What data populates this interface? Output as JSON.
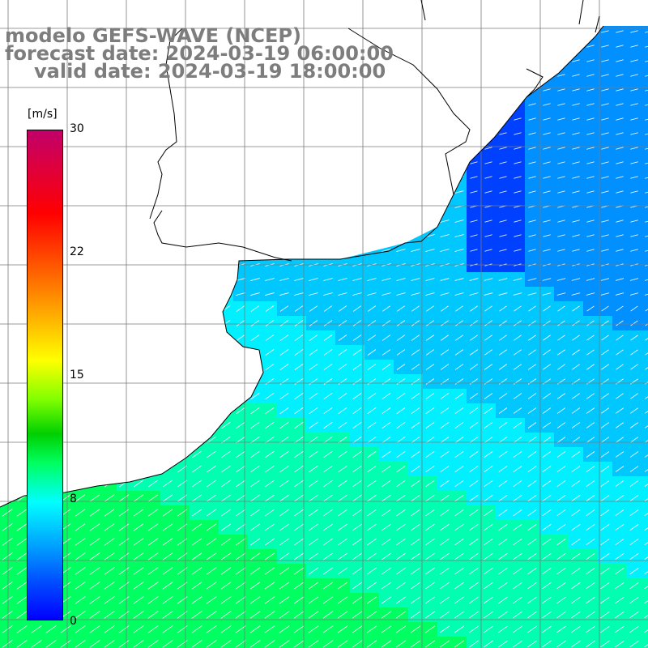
{
  "figure": {
    "title_lines": [
      "modelo GEFS-WAVE (NCEP)",
      "forecast date: 2024-03-19 06:00:00",
      "valid date: 2024-03-19 18:00:00"
    ],
    "variable": "wind speed and direction",
    "background_color": "#ffffff",
    "grid_color": "#7a7a7a",
    "coastline_color": "#000000",
    "vector_color": "#ffffff"
  },
  "colorbar": {
    "unit_label": "[m/s]",
    "min": 0,
    "max": 30,
    "ticks": [
      {
        "value": 30,
        "label": "30"
      },
      {
        "value": 22,
        "label": "22"
      },
      {
        "value": 15,
        "label": "15"
      },
      {
        "value": 8,
        "label": "8"
      },
      {
        "value": 0,
        "label": "0"
      }
    ],
    "colors": [
      "#0000ff",
      "#0050ff",
      "#00a0ff",
      "#00ffff",
      "#00ff60",
      "#00d000",
      "#80ff00",
      "#ffff00",
      "#ffc000",
      "#ff6a00",
      "#ff0000",
      "#e0003a",
      "#c0006a"
    ]
  },
  "wind_field": {
    "dominant_direction": "from east-northeast / north-east toward southwest",
    "typical_speed_range_ms": [
      5,
      11
    ],
    "max_region": "south-west corner (green, ~10-11 m/s)"
  }
}
